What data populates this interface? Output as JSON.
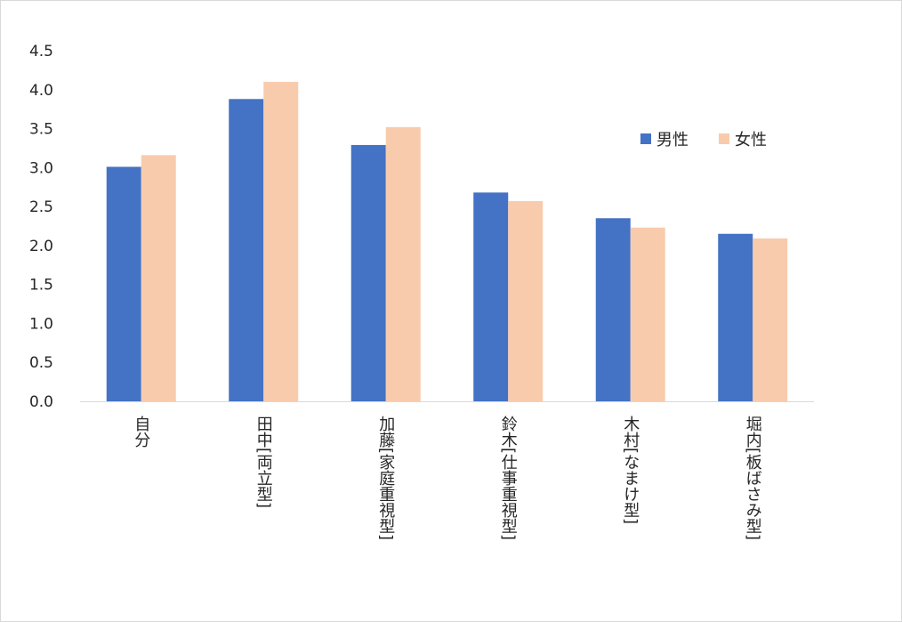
{
  "chart_data": {
    "type": "bar",
    "title": "",
    "xlabel": "",
    "ylabel": "",
    "ylim": [
      0,
      4.5
    ],
    "yticks": [
      "0.0",
      "0.5",
      "1.0",
      "1.5",
      "2.0",
      "2.5",
      "3.0",
      "3.5",
      "4.0",
      "4.5"
    ],
    "categories": [
      "自分",
      "田中[両立型]",
      "加藤[家庭重視型]",
      "鈴木[仕事重視型]",
      "木村[なまけ型]",
      "堀内[板ばさみ型]"
    ],
    "series": [
      {
        "name": "男性",
        "color": "#4472C4",
        "values": [
          3.01,
          3.88,
          3.29,
          2.68,
          2.35,
          2.15
        ]
      },
      {
        "name": "女性",
        "color": "#F8CBAD",
        "values": [
          3.16,
          4.1,
          3.52,
          2.57,
          2.23,
          2.09
        ]
      }
    ],
    "legend_position": "right"
  }
}
